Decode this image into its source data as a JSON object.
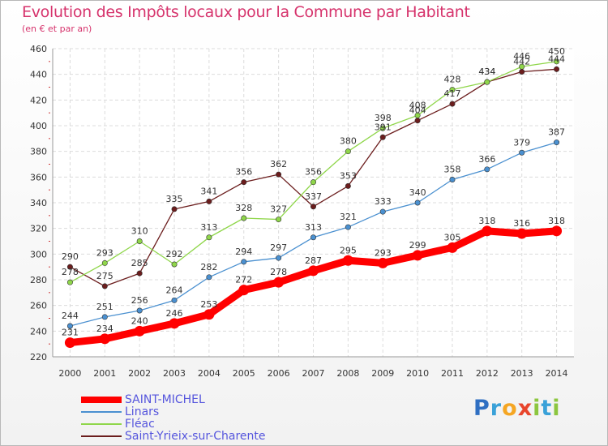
{
  "header": {
    "title": "Evolution des Impôts locaux pour la Commune par Habitant",
    "subtitle": "(en € et par an)"
  },
  "logo": {
    "p": "P",
    "r": "r",
    "o": "o",
    "x": "x",
    "i1": "i",
    "t": "t",
    "i2": "i"
  },
  "colors": {
    "title": "#d6336c",
    "legend_text": "#5555dd",
    "saint_michel": "#ff0000",
    "linars": "#4a90d0",
    "fleac": "#8fd64a",
    "saint_yrieix": "#6b1d1d"
  },
  "chart_data": {
    "type": "line",
    "title": "Evolution des Impôts locaux pour la Commune par Habitant",
    "subtitle": "(en € et par an)",
    "xlabel": "",
    "ylabel": "",
    "ylim": [
      220,
      460
    ],
    "yticks": [
      220,
      240,
      260,
      280,
      300,
      320,
      340,
      360,
      380,
      400,
      420,
      440,
      460
    ],
    "x": [
      2000,
      2001,
      2002,
      2003,
      2004,
      2005,
      2006,
      2007,
      2008,
      2009,
      2010,
      2011,
      2012,
      2013,
      2014
    ],
    "grid": true,
    "legend_position": "bottom-left",
    "series": [
      {
        "name": "SAINT-MICHEL",
        "values": [
          231,
          234,
          240,
          246,
          253,
          272,
          278,
          287,
          295,
          293,
          299,
          305,
          318,
          316,
          318
        ]
      },
      {
        "name": "Linars",
        "values": [
          244,
          251,
          256,
          264,
          282,
          294,
          297,
          313,
          321,
          333,
          340,
          358,
          366,
          379,
          387
        ]
      },
      {
        "name": "Fléac",
        "values": [
          278,
          293,
          310,
          292,
          313,
          328,
          327,
          356,
          380,
          398,
          408,
          428,
          434,
          446,
          450
        ]
      },
      {
        "name": "Saint-Yrieix-sur-Charente",
        "values": [
          290,
          275,
          285,
          335,
          341,
          356,
          362,
          337,
          353,
          391,
          404,
          417,
          434,
          442,
          444
        ]
      }
    ]
  }
}
